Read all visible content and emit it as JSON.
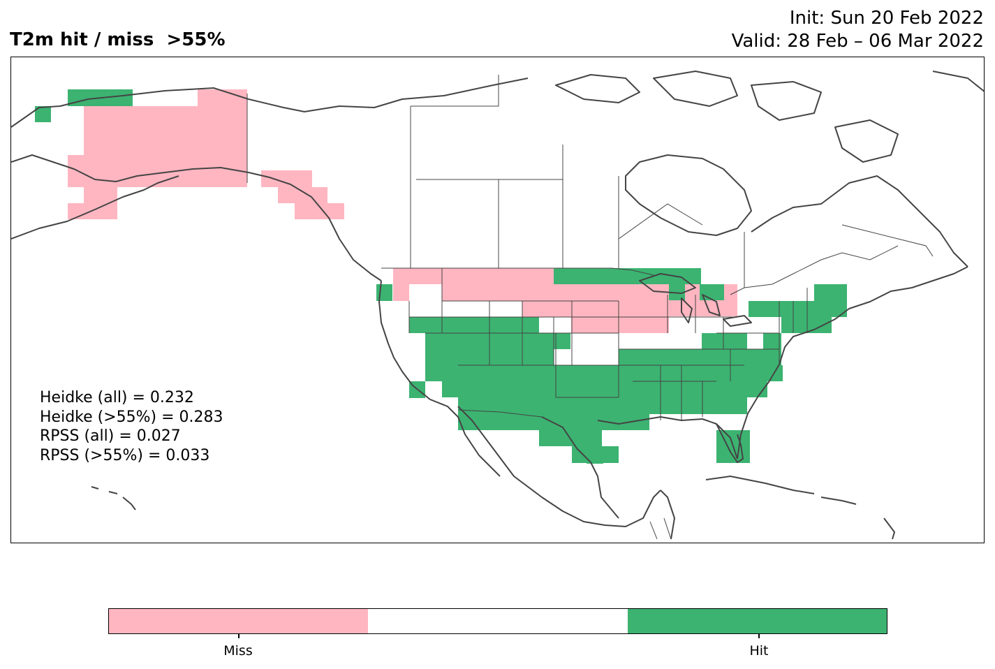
{
  "title": "T2m hit / miss  >55%",
  "init": "Init: Sun 20 Feb 2022",
  "valid": "Valid: 28 Feb – 06 Mar 2022",
  "stats": [
    "Heidke (all) = 0.232",
    "Heidke (>55%) = 0.283",
    "RPSS (all) = 0.027",
    "RPSS (>55%) = 0.033"
  ],
  "legend": {
    "colors": {
      "miss": "#ffb6c1",
      "neutral": "#ffffff",
      "hit": "#3cb371"
    },
    "miss_label": "Miss",
    "hit_label": "Hit"
  },
  "colors": {
    "miss": "#ffb6c1",
    "hit": "#3cb371",
    "coastline": "#444444",
    "border": "#000000"
  }
}
